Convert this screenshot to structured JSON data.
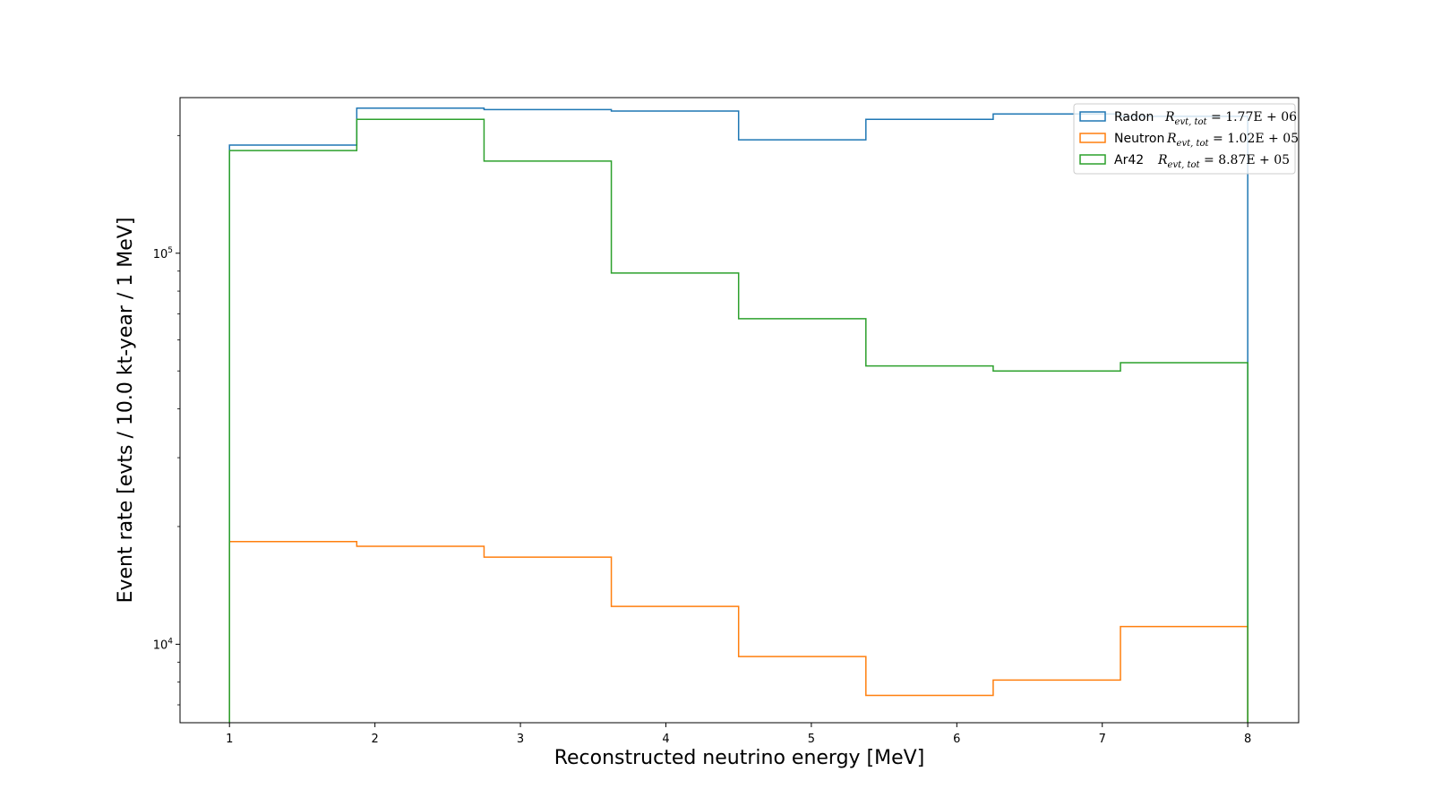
{
  "chart_data": {
    "type": "step",
    "xlabel": "Reconstructed neutrino energy [MeV]",
    "ylabel": "Event rate [evts / 10.0 kt-year / 1 MeV]",
    "yscale": "log",
    "xlim": [
      0.66,
      8.35
    ],
    "ylim": [
      6300,
      250000
    ],
    "xticks": [
      1,
      2,
      3,
      4,
      5,
      6,
      7,
      8
    ],
    "xtick_labels": [
      "1",
      "2",
      "3",
      "4",
      "5",
      "6",
      "7",
      "8"
    ],
    "yticks": [
      {
        "value": 10000,
        "base": "10",
        "exp": "4"
      },
      {
        "value": 100000,
        "base": "10",
        "exp": "5"
      }
    ],
    "grid": false,
    "legend_position": "top-right",
    "bin_edges": [
      1.0,
      1.875,
      2.75,
      3.625,
      4.5,
      5.375,
      6.25,
      7.125,
      8.0
    ],
    "series": [
      {
        "name": "Radon",
        "legend_label": "Radon",
        "legend_math": "R",
        "legend_sub": "evt, tot",
        "legend_value": " = 1.77E + 06",
        "color": "#1f77b4",
        "values": [
          189000,
          235000,
          233000,
          231000,
          195000,
          220000,
          227000,
          224000
        ]
      },
      {
        "name": "Neutron",
        "legend_label": "Neutron",
        "legend_math": "R",
        "legend_sub": "evt, tot",
        "legend_value": " = 1.02E + 05",
        "color": "#ff7f0e",
        "values": [
          18300,
          17800,
          16700,
          12500,
          9300,
          7400,
          8100,
          11100
        ]
      },
      {
        "name": "Ar42",
        "legend_label": "Ar42",
        "legend_math": "R",
        "legend_sub": "evt, tot",
        "legend_value": " = 8.87E + 05",
        "color": "#2ca02c",
        "values": [
          183000,
          220000,
          172000,
          89000,
          68000,
          51500,
          50000,
          52500
        ]
      }
    ]
  }
}
